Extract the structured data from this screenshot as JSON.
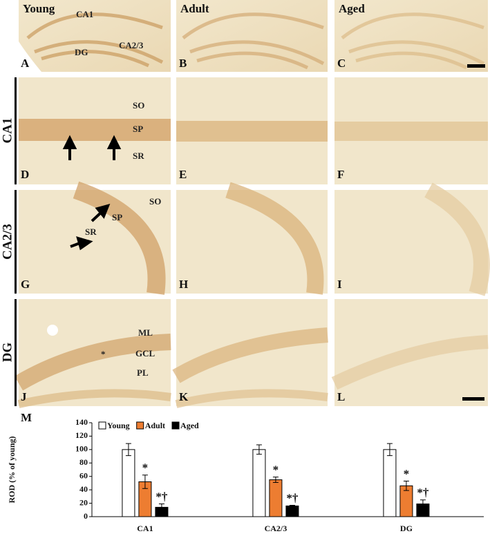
{
  "figure": {
    "columns": [
      "Young",
      "Adult",
      "Aged"
    ],
    "rows": [
      "CA1",
      "CA2/3",
      "DG"
    ],
    "panel_letters": [
      "A",
      "B",
      "C",
      "D",
      "E",
      "F",
      "G",
      "H",
      "I",
      "J",
      "K",
      "L",
      "M"
    ],
    "overview_labels": [
      "CA1",
      "DG",
      "CA2/3"
    ],
    "ca1_labels": [
      "SO",
      "SP",
      "SR"
    ],
    "ca23_labels": [
      "SO",
      "SP",
      "SR"
    ],
    "dg_labels": [
      "ML",
      "GCL",
      "PL",
      "*"
    ]
  },
  "chart_data": {
    "type": "bar",
    "y_label": "ROD (% of young)",
    "categories": [
      "CA1",
      "CA2/3",
      "DG"
    ],
    "series": [
      {
        "name": "Young",
        "color": "#ffffff",
        "values": [
          100,
          100,
          100
        ],
        "errors": [
          9,
          7,
          9
        ],
        "markers": [
          null,
          null,
          null
        ]
      },
      {
        "name": "Adult",
        "color": "#ed7d31",
        "values": [
          52,
          55,
          46
        ],
        "errors": [
          10,
          4,
          7
        ],
        "markers": [
          "*",
          "*",
          "*"
        ]
      },
      {
        "name": "Aged",
        "color": "#000000",
        "values": [
          14,
          16,
          19
        ],
        "errors": [
          5,
          1,
          6
        ],
        "markers": [
          "*†",
          "*†",
          "*†"
        ]
      }
    ],
    "ylim": [
      0,
      140
    ],
    "yticks": [
      0,
      20,
      40,
      60,
      80,
      100,
      120,
      140
    ],
    "legend": "top-left"
  }
}
